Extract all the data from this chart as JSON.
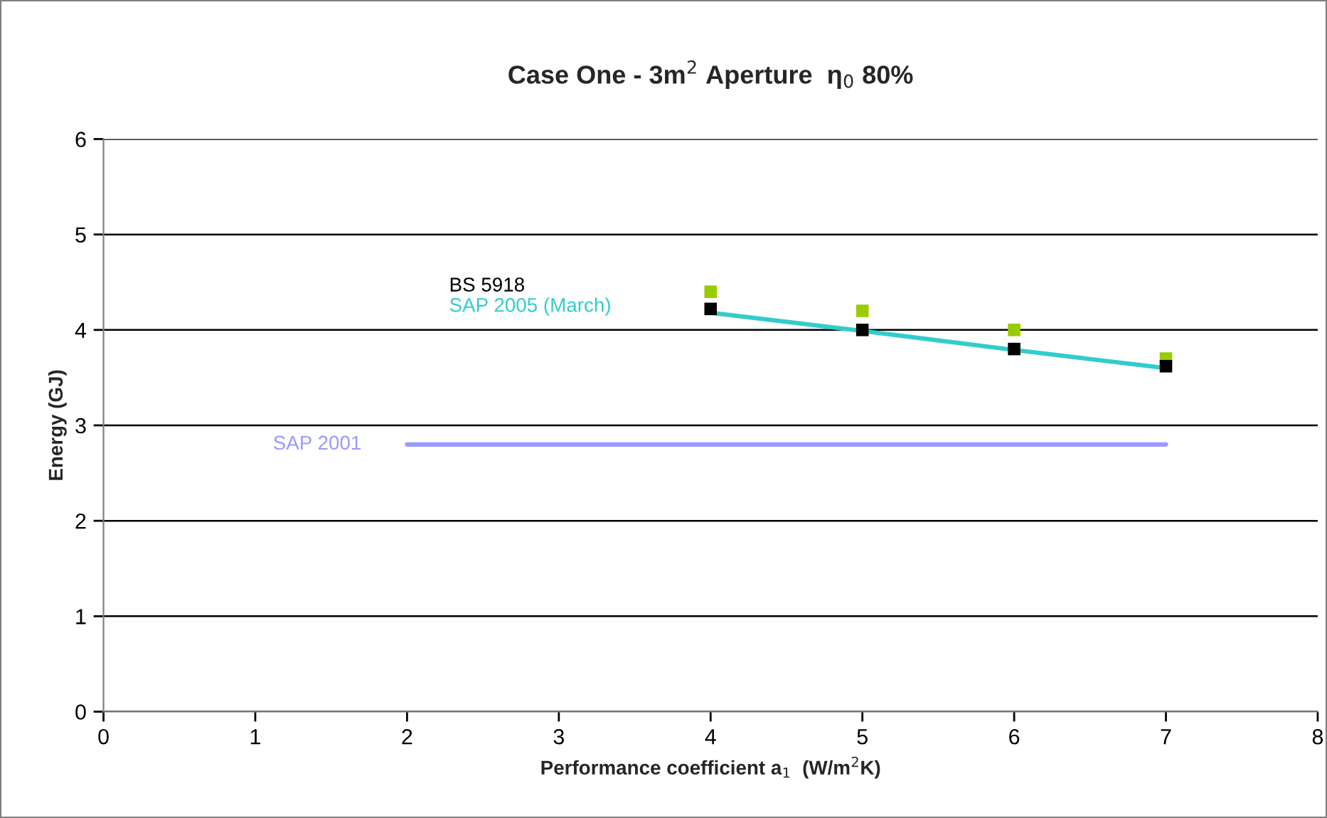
{
  "chart_data": {
    "type": "scatter",
    "title": "Case One - 3m$^{2}$ Aperture  η$_{0}$ 80%",
    "xlabel": "Performance coefficient a$_{1}$  (W/m$^{2}$K)",
    "ylabel": "Energy (GJ)",
    "x": [
      4,
      5,
      6,
      7
    ],
    "series": [
      {
        "color": "#99cc00",
        "marker": "square",
        "values": [
          4.4,
          4.2,
          4.0,
          3.7
        ]
      },
      {
        "name": "BS 5918",
        "color": "#000000",
        "marker": "square",
        "values": [
          4.22,
          4.0,
          3.8,
          3.62
        ]
      },
      {
        "type": "line",
        "name": "SAP 2005 (March)",
        "color": "#33cccc",
        "marker": "none",
        "values": [
          4.18,
          3.99,
          3.79,
          3.6
        ]
      },
      {
        "type": "line",
        "name": "SAP 2001",
        "color": "#9999ff",
        "marker": "none",
        "x": [
          2,
          7
        ],
        "values": [
          2.8,
          2.8
        ]
      }
    ],
    "xlim": [
      0,
      8
    ],
    "xticks": [
      0,
      1,
      2,
      3,
      4,
      5,
      6,
      7,
      8
    ],
    "ylim": [
      0,
      6
    ],
    "yticks": [
      0,
      1,
      2,
      3,
      4,
      5,
      6
    ],
    "grid": "y",
    "legend": "top left"
  }
}
